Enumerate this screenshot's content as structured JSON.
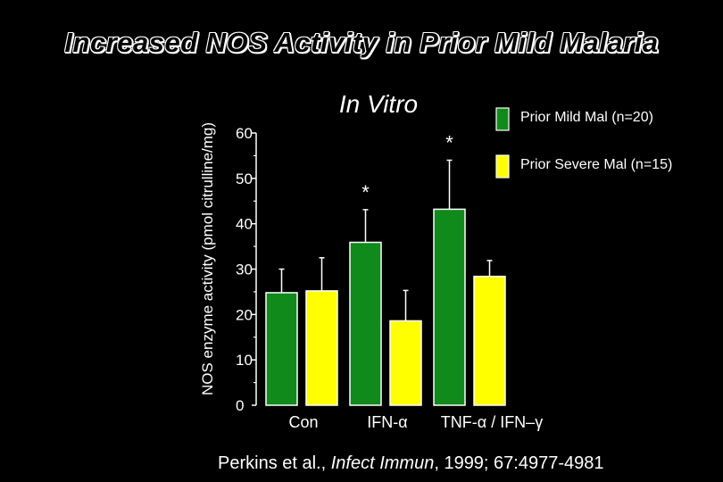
{
  "slide": {
    "title": "Increased NOS Activity in Prior Mild Malaria"
  },
  "citation": {
    "authors": "Perkins et al., ",
    "journal": "Infect Immun",
    "details": ", 1999; 67:4977-4981"
  },
  "chart_data": {
    "type": "bar",
    "title": "In Vitro",
    "xlabel": "",
    "ylabel": "NOS enzyme activity (pmol citrulline/mg)",
    "ylim": [
      0,
      60
    ],
    "yticks": [
      0,
      10,
      20,
      30,
      40,
      50,
      60
    ],
    "categories": [
      "Con",
      "IFN-α",
      "TNF-α / IFN–γ"
    ],
    "series": [
      {
        "name": "Prior Mild Mal (n=20)",
        "color": "#118a1c",
        "values": [
          24.8,
          35.9,
          43.2
        ],
        "error": [
          5.2,
          7.2,
          10.8
        ],
        "significance": [
          "",
          "*",
          "*"
        ]
      },
      {
        "name": "Prior Severe Mal (n=15)",
        "color": "#ffff00",
        "values": [
          25.2,
          18.6,
          28.4
        ],
        "error": [
          7.3,
          6.7,
          3.5
        ],
        "significance": [
          "",
          "",
          ""
        ]
      }
    ],
    "legend_placement": "top-right",
    "grid": false
  }
}
